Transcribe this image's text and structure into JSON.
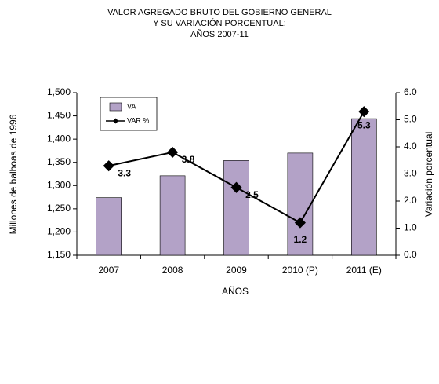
{
  "chart_data": {
    "type": "bar-line",
    "title": [
      "VALOR AGREGADO BRUTO  DEL GOBIERNO  GENERAL",
      "Y SU VARIACIÓN  PORCENTUAL:",
      "AÑOS  2007-11"
    ],
    "x_label": "AÑOS",
    "y_label": "Millones de balboas de 1996",
    "y2_label": "Variación porcentual",
    "categories": [
      "2007",
      "2008",
      "2009",
      "2010 (P)",
      "2011 (E)"
    ],
    "series": [
      {
        "name": "VA",
        "color": "#b3a2c7",
        "values": [
          1274,
          1321,
          1354,
          1370,
          1444
        ]
      },
      {
        "name": "VAR %",
        "color": "#000000",
        "axis": "y2",
        "values": [
          3.3,
          3.8,
          2.5,
          1.2,
          5.3
        ]
      }
    ],
    "ylim": [
      1150,
      1500
    ],
    "yticks": [
      {
        "value": 1150,
        "label": "1,150"
      },
      {
        "value": 1200,
        "label": "1,200"
      },
      {
        "value": 1250,
        "label": "1,250"
      },
      {
        "value": 1300,
        "label": "1,300"
      },
      {
        "value": 1350,
        "label": "1,350"
      },
      {
        "value": 1400,
        "label": "1,400"
      },
      {
        "value": 1450,
        "label": "1,450"
      },
      {
        "value": 1500,
        "label": "1,500"
      }
    ],
    "y2lim": [
      0,
      6
    ],
    "y2ticks": [
      {
        "value": 0,
        "label": "0.0"
      },
      {
        "value": 1,
        "label": "1.0"
      },
      {
        "value": 2,
        "label": "2.0"
      },
      {
        "value": 3,
        "label": "3.0"
      },
      {
        "value": 4,
        "label": "4.0"
      },
      {
        "value": 5,
        "label": "5.0"
      },
      {
        "value": 6,
        "label": "6.0"
      }
    ],
    "legend": "upper left"
  }
}
